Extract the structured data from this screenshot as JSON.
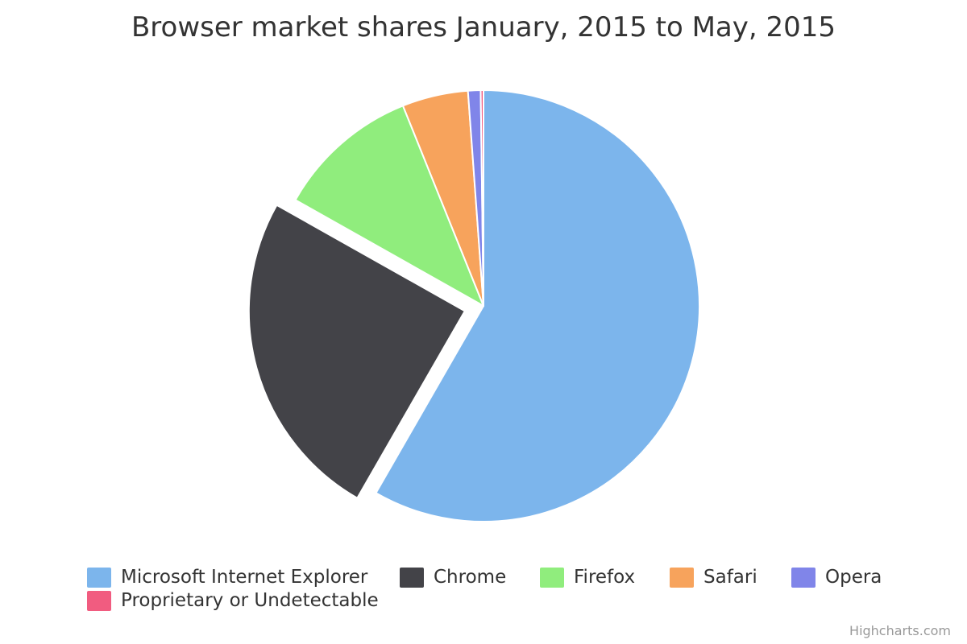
{
  "chart_data": {
    "type": "pie",
    "title": "Browser market shares January, 2015 to May, 2015",
    "slices": [
      {
        "name": "Microsoft Internet Explorer",
        "value": 56.33,
        "color": "#7cb5ec",
        "sliced": false
      },
      {
        "name": "Chrome",
        "value": 24.03,
        "color": "#434348",
        "sliced": true
      },
      {
        "name": "Firefox",
        "value": 10.38,
        "color": "#90ed7d",
        "sliced": false
      },
      {
        "name": "Safari",
        "value": 4.77,
        "color": "#f7a35c",
        "sliced": false
      },
      {
        "name": "Opera",
        "value": 0.91,
        "color": "#8085e9",
        "sliced": false
      },
      {
        "name": "Proprietary or Undetectable",
        "value": 0.2,
        "color": "#f15c80",
        "sliced": false
      }
    ],
    "legend_position": "bottom"
  },
  "credits": "Highcharts.com"
}
